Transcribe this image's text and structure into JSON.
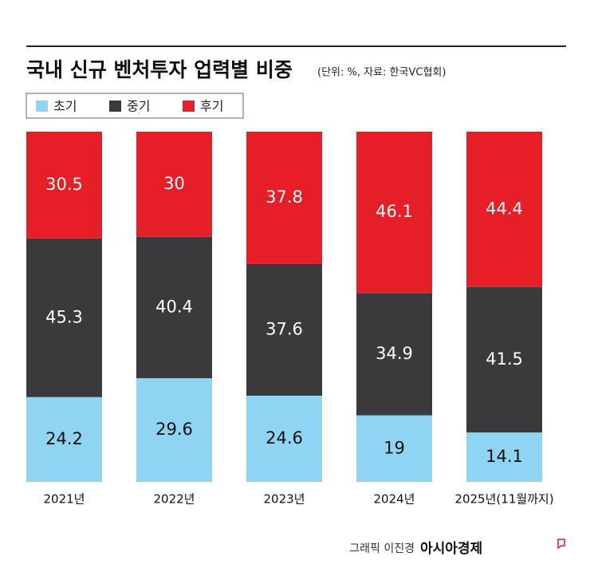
{
  "chart_data": {
    "type": "stacked_bar",
    "title": "국내 신규 벤처투자 업력별 비중",
    "subtitle": "(단위: %, 자료: 한국VC협회)",
    "categories": [
      "2021년",
      "2022년",
      "2023년",
      "2024년",
      "2025년(11월까지)"
    ],
    "series": [
      {
        "name": "초기",
        "color": "#8fd4f2",
        "values": [
          24.2,
          29.6,
          24.6,
          19,
          14.1
        ]
      },
      {
        "name": "중기",
        "color": "#3a3a3c",
        "values": [
          45.3,
          40.4,
          37.6,
          34.9,
          41.5
        ]
      },
      {
        "name": "후기",
        "color": "#e61e28",
        "values": [
          30.5,
          30,
          37.8,
          46.1,
          44.4
        ]
      }
    ],
    "credit": "그래픽 이진경",
    "brand": "아시아경제"
  }
}
